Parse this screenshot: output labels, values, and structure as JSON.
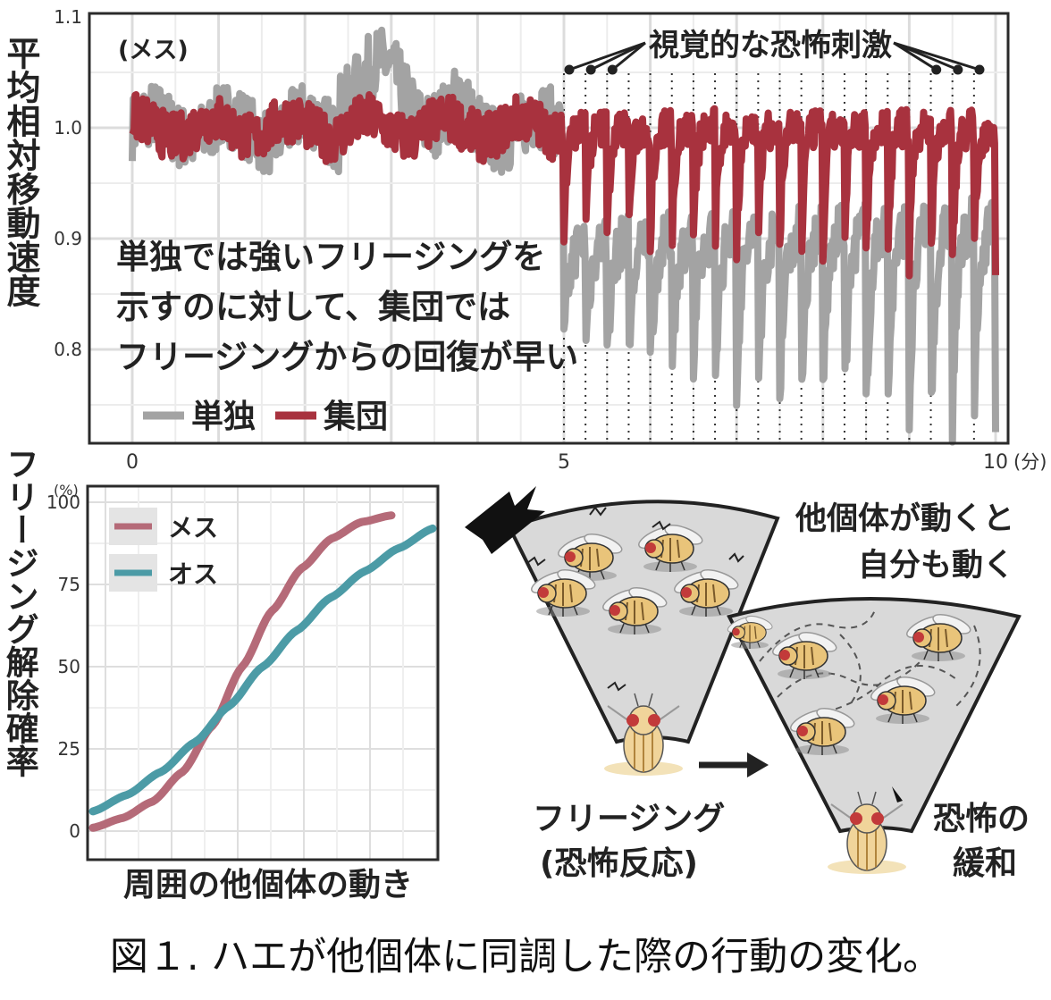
{
  "top_chart": {
    "y_axis_title": "平均相対移動速度",
    "subset_label": "(メス)",
    "annotation": "視覚的な恐怖刺激",
    "note_lines": [
      "単独では強いフリージングを",
      "示すのに対して、集団では",
      "フリージングからの回復が早い"
    ],
    "y_ticks": [
      "1.1",
      "1.0",
      "0.9",
      "0.8"
    ],
    "x_ticks": [
      "0",
      "5",
      "10"
    ],
    "x_unit": "(分)",
    "legend": [
      {
        "label": "単独",
        "color": "#a3a3a3"
      },
      {
        "label": "集団",
        "color": "#a8323e"
      }
    ]
  },
  "bottom_chart": {
    "y_axis_title": "フリージング解除確率",
    "y_unit": "(%)",
    "y_ticks": [
      "100",
      "75",
      "50",
      "25",
      "0"
    ],
    "x_axis_title": "周囲の他個体の動き",
    "legend": [
      {
        "label": "メス",
        "color": "#b56a78"
      },
      {
        "label": "オス",
        "color": "#4c9ba6"
      }
    ]
  },
  "illustration": {
    "text_top_right_1": "他個体が動くと",
    "text_top_right_2": "自分も動く",
    "text_left_1": "フリージング",
    "text_left_2": "(恐怖反応)",
    "text_right_1": "恐怖の",
    "text_right_2": "緩和"
  },
  "caption": "図１. ハエが他個体に同調した際の行動の変化。",
  "chart_data": [
    {
      "type": "line",
      "title": "(メス)",
      "ylabel": "平均相対移動速度",
      "xlabel": "(分)",
      "xlim": [
        0,
        10
      ],
      "ylim": [
        0.72,
        1.1
      ],
      "stimulus_start": 5.0,
      "stimulus_interval": 0.25,
      "stimulus_count": 20,
      "series": [
        {
          "name": "単独",
          "color": "#a3a3a3",
          "baseline": 1.0,
          "trough_first": 0.8,
          "trough_late": 0.73,
          "recovery": 0.89,
          "noise": 0.03
        },
        {
          "name": "集団",
          "color": "#a8323e",
          "baseline": 1.0,
          "trough_first": 0.9,
          "trough_late": 0.87,
          "recovery": 1.0,
          "noise": 0.022
        }
      ]
    },
    {
      "type": "line",
      "ylabel": "フリージング解除確率",
      "xlabel": "周囲の他個体の動き",
      "ylim": [
        0,
        100
      ],
      "x": [
        0,
        0.1,
        0.2,
        0.3,
        0.4,
        0.5,
        0.6,
        0.7,
        0.8,
        0.9,
        1.0
      ],
      "series": [
        {
          "name": "メス",
          "color": "#b56a78",
          "values": [
            1,
            4,
            9,
            18,
            32,
            50,
            67,
            80,
            89,
            94,
            96
          ]
        },
        {
          "name": "オス",
          "color": "#4c9ba6",
          "values": [
            6,
            11,
            18,
            27,
            38,
            50,
            61,
            71,
            79,
            86,
            92
          ]
        }
      ]
    }
  ]
}
